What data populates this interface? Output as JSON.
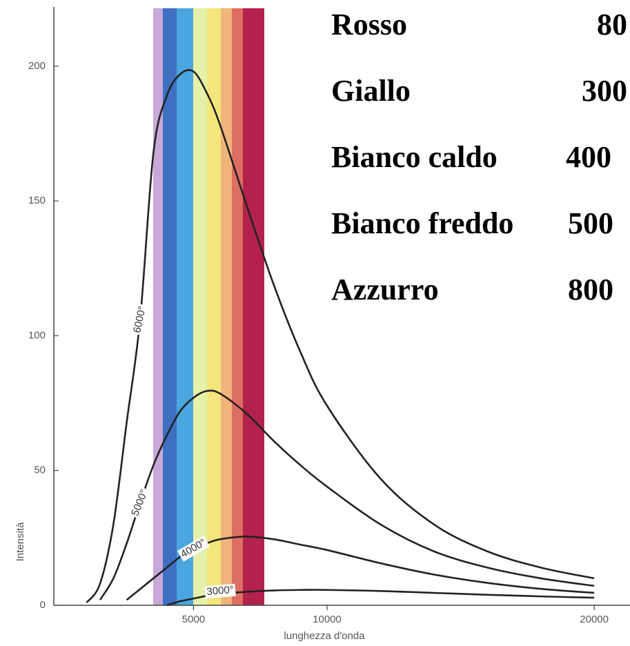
{
  "chart_data": {
    "type": "line",
    "x_label": "lunghezza d'onda",
    "y_label": "Intensità",
    "x": [
      1000,
      1500,
      2000,
      2500,
      3000,
      3500,
      4000,
      4500,
      5000,
      5500,
      6000,
      7000,
      8000,
      9000,
      10000,
      12000,
      14000,
      16000,
      18000,
      20000
    ],
    "series": [
      {
        "name": "6000°",
        "color": "#222222",
        "values": [
          1,
          8,
          30,
          68,
          106,
          168,
          189,
          197,
          198,
          190,
          178,
          148,
          119,
          94,
          74,
          47,
          30,
          20,
          14,
          10
        ]
      },
      {
        "name": "5000°",
        "color": "#222222",
        "values": [
          null,
          2,
          10,
          23,
          38,
          52,
          63,
          72,
          77,
          79.5,
          78.5,
          71,
          61,
          52,
          44,
          30,
          20,
          14,
          10,
          7.2
        ]
      },
      {
        "name": "4000°",
        "color": "#222222",
        "values": [
          null,
          null,
          null,
          2,
          6,
          10,
          14,
          18,
          21,
          23,
          24.5,
          25.5,
          24.5,
          22.5,
          20.5,
          15.6,
          11.4,
          8.3,
          6.1,
          4.6
        ]
      },
      {
        "name": "3000°",
        "color": "#222222",
        "values": [
          null,
          null,
          null,
          null,
          null,
          null,
          0,
          1.5,
          2.5,
          3.5,
          4.2,
          5,
          5.5,
          5.7,
          5.7,
          5.3,
          4.6,
          3.9,
          3.3,
          2.8
        ]
      }
    ],
    "xlim": [
      -230,
      21340
    ],
    "ylim": [
      0,
      222
    ],
    "xticks": [
      5000,
      10000,
      20000
    ],
    "yticks": [
      0,
      50,
      100,
      150,
      200
    ],
    "annotations": [
      {
        "text": "Rosso",
        "value": "80"
      },
      {
        "text": "Giallo",
        "value": "300"
      },
      {
        "text": "Bianco caldo",
        "value": "400"
      },
      {
        "text": "Bianco freddo",
        "value": "500"
      },
      {
        "text": "Azzurro",
        "value": "800"
      }
    ]
  }
}
